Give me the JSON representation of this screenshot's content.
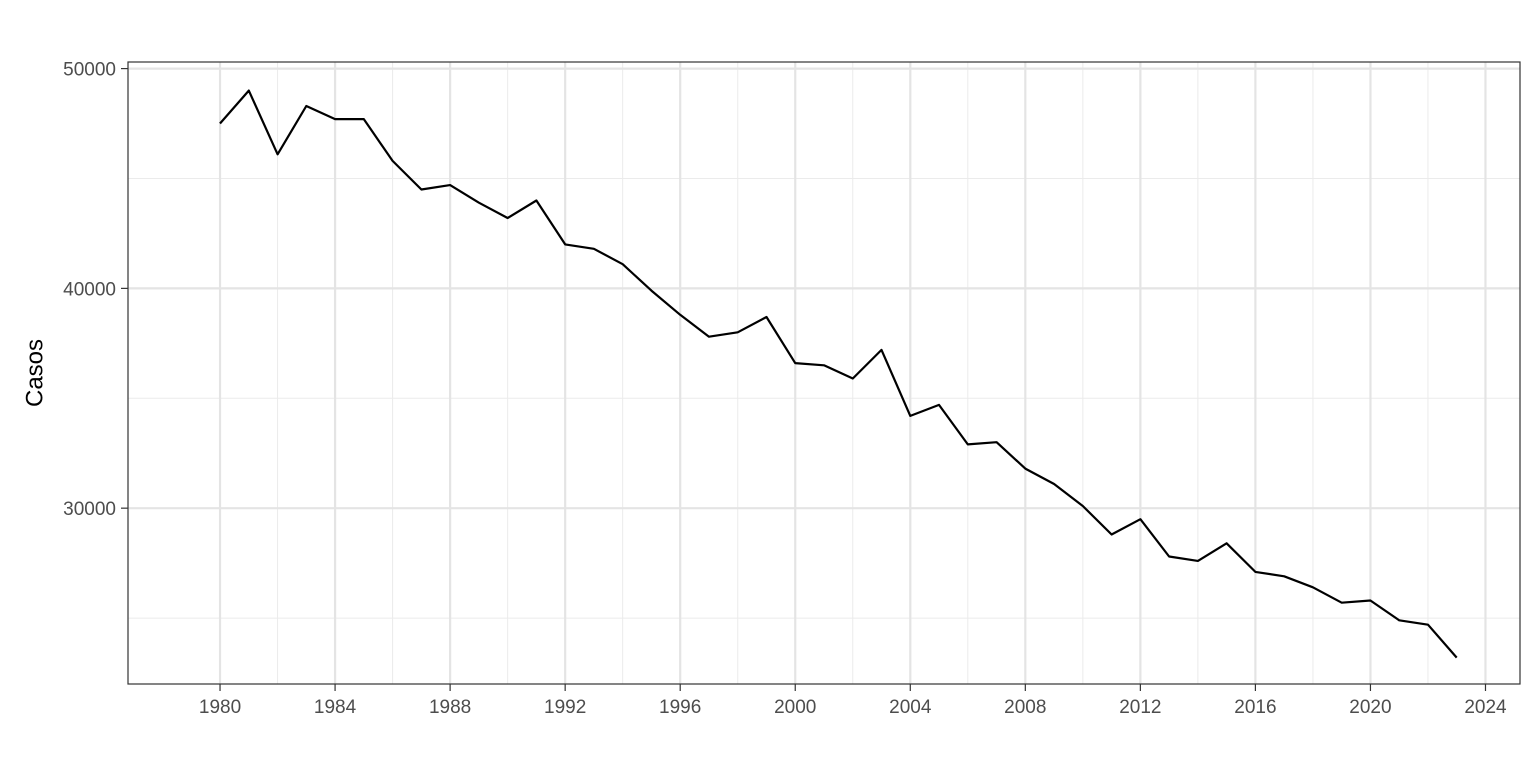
{
  "chart_data": {
    "type": "line",
    "title": "",
    "xlabel": "",
    "ylabel": "Casos",
    "xlim": [
      1976.8,
      2025.2
    ],
    "ylim": [
      22000,
      50300
    ],
    "x_major_ticks": [
      1980,
      1984,
      1988,
      1992,
      1996,
      2000,
      2004,
      2008,
      2012,
      2016,
      2020,
      2024
    ],
    "x_minor_ticks": [
      1982,
      1986,
      1990,
      1994,
      1998,
      2002,
      2006,
      2010,
      2014,
      2018,
      2022
    ],
    "y_major_ticks": [
      30000,
      40000,
      50000
    ],
    "y_minor_ticks": [
      25000,
      35000,
      45000
    ],
    "grid": true,
    "legend": "none",
    "series": [
      {
        "color": "#000000",
        "x": [
          1980,
          1981,
          1982,
          1983,
          1984,
          1985,
          1986,
          1987,
          1988,
          1989,
          1990,
          1991,
          1992,
          1993,
          1994,
          1995,
          1996,
          1997,
          1998,
          1999,
          2000,
          2001,
          2002,
          2003,
          2004,
          2005,
          2006,
          2007,
          2008,
          2009,
          2010,
          2011,
          2012,
          2013,
          2014,
          2015,
          2016,
          2017,
          2018,
          2019,
          2020,
          2021,
          2022,
          2023
        ],
        "values": [
          47500,
          49000,
          46100,
          48300,
          47700,
          47700,
          45800,
          44500,
          44700,
          43900,
          43200,
          44000,
          42000,
          41800,
          41100,
          39900,
          38800,
          37800,
          38000,
          38700,
          36600,
          36500,
          35900,
          37200,
          34200,
          34700,
          32900,
          33000,
          31800,
          31100,
          30100,
          28800,
          29500,
          27800,
          27600,
          28400,
          27100,
          26900,
          26400,
          25700,
          25800,
          24900,
          24700,
          23200
        ]
      }
    ]
  }
}
